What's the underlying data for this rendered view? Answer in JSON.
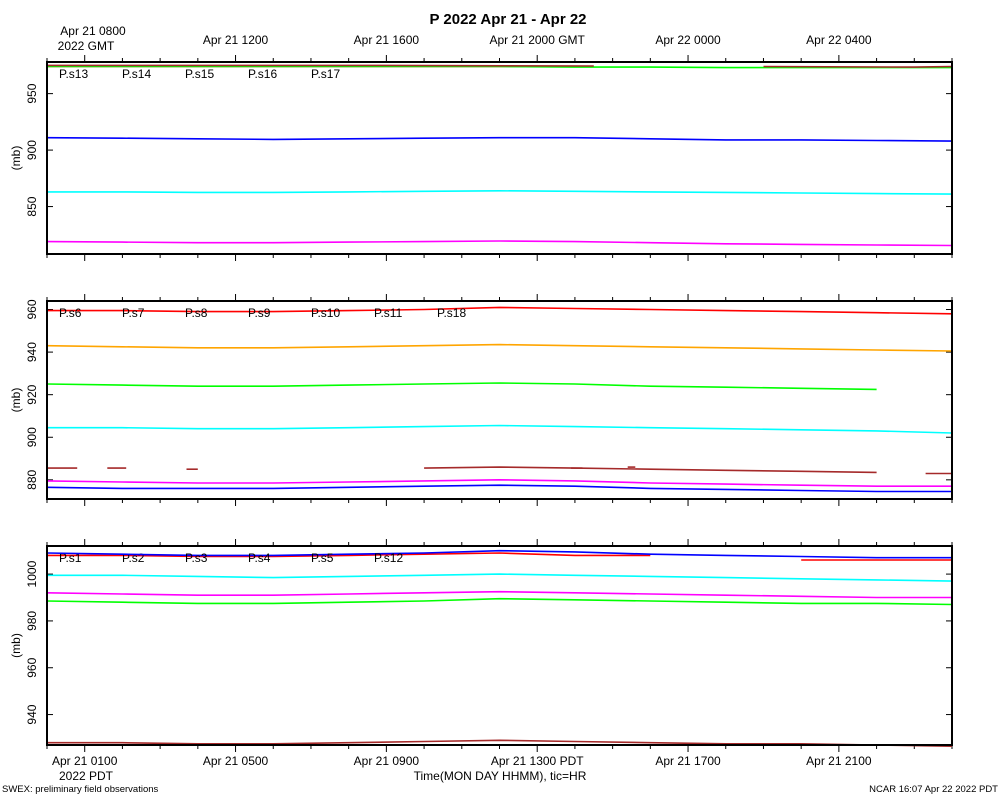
{
  "chart_data": {
    "type": "line",
    "title": "P 2022 Apr 21 - Apr 22",
    "gmt_axis": {
      "first_label": [
        "Apr 21 0800",
        "2022 GMT"
      ],
      "labels": [
        "Apr 21 1200",
        "Apr 21 1600",
        "Apr 21 2000 GMT",
        "Apr 22 0000",
        "Apr 22 0400"
      ]
    },
    "local_axis": {
      "labels": [
        "Apr 21 0100",
        "Apr 21 0500",
        "Apr 21 0900",
        "Apr 21 1300 PDT",
        "Apr 21 1700",
        "Apr 21 2100"
      ],
      "sublabel": "2022 PDT",
      "xlabel": "Time(MON DAY HHMM), tic=HR"
    },
    "footer_left": "SWEX: preliminary field observations",
    "footer_right": "NCAR 16:07 Apr 22 2022 PDT",
    "x_range_hours_pdt": [
      0,
      24
    ],
    "sample_hours": [
      0,
      2,
      4,
      6,
      8,
      10,
      12,
      14,
      16,
      18,
      20,
      22,
      24
    ],
    "panels": [
      {
        "ylabel": "(mb)",
        "ylim": [
          808,
          978
        ],
        "yticks": [
          850,
          900,
          950
        ],
        "series": [
          {
            "name": "P.s13",
            "color": "#ff0000",
            "values": [
              974,
              974,
              974,
              974,
              974,
              974,
              974,
              974,
              null,
              null,
              null,
              null,
              null
            ],
            "note_end": 14.5
          },
          {
            "name": "P.s14",
            "color": "#00ff00",
            "values": [
              974,
              974,
              974,
              974,
              974,
              974,
              974,
              973.5,
              973.5,
              973,
              973,
              973,
              973
            ]
          },
          {
            "name": "P.s15",
            "color": "#0000ff",
            "values": [
              911,
              910.5,
              910,
              909.5,
              910,
              910.5,
              911,
              911,
              910,
              909,
              909,
              908.5,
              908
            ]
          },
          {
            "name": "P.s16",
            "color": "#00ffff",
            "values": [
              863,
              863,
              862.5,
              862.5,
              863,
              863.5,
              864,
              863.5,
              863,
              862.5,
              862,
              861.5,
              861
            ]
          },
          {
            "name": "P.s17",
            "color": "#ff00ff",
            "values": [
              819,
              818.5,
              818,
              818,
              818.5,
              819,
              819.5,
              819,
              818,
              817,
              816.5,
              816,
              815.5
            ]
          }
        ],
        "extra_series": [
          {
            "color": "#a52a2a",
            "segments": [
              [
                [
                  0,
                  975
                ],
                [
                  8,
                  975
                ],
                [
                  14.5,
                  974.5
                ]
              ],
              [
                [
                  19,
                  974
                ],
                [
                  23,
                  973.5
                ],
                [
                  24,
                  974
                ]
              ]
            ]
          }
        ]
      },
      {
        "ylabel": "(mb)",
        "ylim": [
          871,
          964
        ],
        "yticks": [
          880,
          900,
          920,
          940,
          960
        ],
        "series": [
          {
            "name": "P.s6",
            "color": "#ff0000",
            "values": [
              959.5,
              959.5,
              959,
              959,
              959.5,
              960,
              961,
              960.5,
              960,
              959.5,
              959,
              958.5,
              958
            ]
          },
          {
            "name": "P.s7",
            "color": "#00ff00",
            "values": [
              925,
              924.5,
              924,
              924,
              924.5,
              925,
              925.5,
              925,
              924,
              923.5,
              923,
              922.5,
              null
            ]
          },
          {
            "name": "P.s8",
            "color": "#0000ff",
            "values": [
              876.5,
              876,
              876,
              876,
              876.5,
              877,
              877.5,
              877,
              876,
              875.5,
              875,
              874.5,
              874.5
            ]
          },
          {
            "name": "P.s9",
            "color": "#00ffff",
            "values": [
              904.5,
              904.5,
              904,
              904,
              904.5,
              905,
              905.5,
              905,
              904.5,
              904,
              903.5,
              903,
              902
            ]
          },
          {
            "name": "P.s10",
            "color": "#ff00ff",
            "values": [
              879.5,
              879,
              878.5,
              878.5,
              879,
              879.5,
              880,
              879.5,
              878.5,
              878,
              877.5,
              877,
              877
            ]
          },
          {
            "name": "P.s11",
            "color": "#a52a2a",
            "values": [
              null,
              null,
              null,
              null,
              null,
              885.5,
              886,
              885.5,
              885,
              884.5,
              884,
              883.5,
              null
            ]
          },
          {
            "name": "P.s18",
            "color": "#ffa500",
            "values": [
              943,
              942.5,
              942,
              942,
              942.5,
              943,
              943.5,
              943,
              942.5,
              942,
              941.5,
              941,
              940.5
            ]
          }
        ],
        "extra_series": [
          {
            "color": "#a52a2a",
            "segments": [
              [
                [
                  0,
                  885.5
                ],
                [
                  0.8,
                  885.5
                ]
              ],
              [
                [
                  1.6,
                  885.5
                ],
                [
                  2.1,
                  885.5
                ]
              ],
              [
                [
                  3.7,
                  885
                ],
                [
                  4.0,
                  885
                ]
              ],
              [
                [
                  13.9,
                  885.5
                ],
                [
                  14.2,
                  885.5
                ]
              ],
              [
                [
                  15.4,
                  886
                ],
                [
                  15.6,
                  886
                ]
              ],
              [
                [
                  23.3,
                  883
                ],
                [
                  24,
                  883
                ]
              ]
            ]
          }
        ]
      },
      {
        "ylabel": "(mb)",
        "ylim": [
          927,
          1012
        ],
        "yticks": [
          940,
          960,
          980,
          1000
        ],
        "series": [
          {
            "name": "P.s1",
            "color": "#ff0000",
            "values": [
              1008,
              1008,
              1007.5,
              1007.5,
              1008,
              1008.5,
              1009,
              1008,
              1008,
              null,
              1006,
              1006,
              1006
            ]
          },
          {
            "name": "P.s2",
            "color": "#00ff00",
            "values": [
              988.5,
              988,
              987.5,
              987.5,
              988,
              988.5,
              989.5,
              989,
              988.5,
              988,
              987.5,
              987.5,
              987
            ]
          },
          {
            "name": "P.s3",
            "color": "#0000ff",
            "values": [
              1009,
              1008.5,
              1008,
              1008,
              1008.5,
              1009,
              1010,
              1009.5,
              1008.5,
              1008,
              1007.5,
              1007,
              1007
            ]
          },
          {
            "name": "P.s4",
            "color": "#00ffff",
            "values": [
              999.5,
              999.5,
              999,
              998.5,
              999,
              999.5,
              1000,
              999.5,
              999,
              998.5,
              998,
              997.5,
              997
            ]
          },
          {
            "name": "P.s5",
            "color": "#ff00ff",
            "values": [
              992,
              991.5,
              991,
              991,
              991.5,
              992,
              992.5,
              992,
              991.5,
              991,
              990.5,
              990,
              990
            ]
          },
          {
            "name": "P.s12",
            "color": "#a52a2a",
            "values": [
              928,
              928,
              927.5,
              927.5,
              928,
              928.5,
              929,
              928.5,
              928,
              927.5,
              927.5,
              927,
              926.5
            ]
          }
        ],
        "extra_series": []
      }
    ]
  }
}
